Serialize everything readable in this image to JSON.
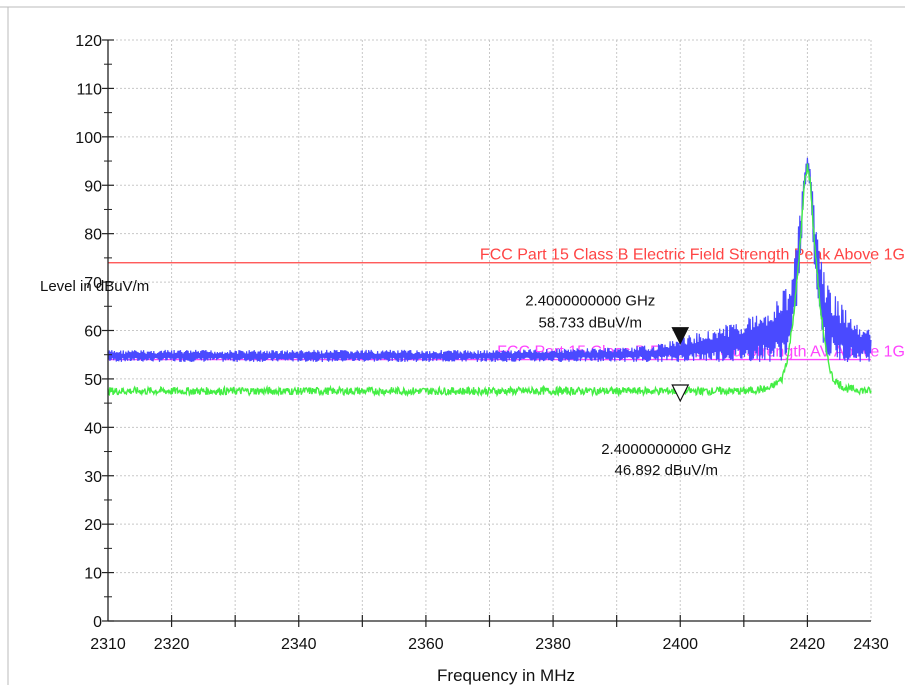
{
  "chart_data": {
    "type": "line",
    "xlabel": "Frequency in MHz",
    "ylabel": "Level in dBuV/m",
    "xlim": [
      2310,
      2430
    ],
    "ylim": [
      0,
      120
    ],
    "x_ticks": [
      2310,
      2320,
      2340,
      2360,
      2380,
      2400,
      2420,
      2430
    ],
    "y_ticks": [
      0,
      10,
      20,
      30,
      40,
      50,
      60,
      70,
      80,
      90,
      100,
      110,
      120
    ],
    "grid": true,
    "series": [
      {
        "color": "#4a4aff",
        "x": [
          2310,
          2330,
          2350,
          2370,
          2390,
          2396,
          2400,
          2404,
          2408,
          2412,
          2415,
          2417,
          2418,
          2419,
          2419.5,
          2420,
          2420.5,
          2421,
          2422,
          2423,
          2425,
          2428,
          2430
        ],
        "y": [
          56,
          56,
          56,
          56,
          56.5,
          57,
          58.5,
          60,
          61.5,
          63.5,
          66,
          70,
          76,
          86,
          93,
          96,
          93,
          86,
          76,
          70,
          66,
          61,
          60
        ],
        "y_low": [
          53.5,
          53.5,
          53.5,
          53.5,
          53.5,
          53.5,
          53.5,
          53.5,
          53.5,
          53.5,
          53.5,
          54,
          60,
          75,
          88,
          93,
          88,
          75,
          60,
          54,
          53.5,
          53.5,
          53.5
        ]
      },
      {
        "color": "#44ee44",
        "x": [
          2310,
          2330,
          2350,
          2370,
          2390,
          2400,
          2410,
          2414,
          2416,
          2417,
          2418,
          2419,
          2419.5,
          2420,
          2420.5,
          2421,
          2422,
          2423,
          2424,
          2426,
          2430
        ],
        "y": [
          47.5,
          47.5,
          47.5,
          47.5,
          47.5,
          47.5,
          47.5,
          48,
          50,
          55,
          65,
          80,
          90,
          94,
          90,
          80,
          65,
          55,
          50,
          48,
          47.5
        ]
      }
    ],
    "limit_lines": [
      {
        "name": "FCC Part 15 Class B Electric Field Strength Peak Above 1G",
        "value": 74,
        "color": "#ff4444"
      },
      {
        "name": "FCC Part 15 Class B Electric Field Strength AV Above 1G",
        "value": 54,
        "color": "#ff44ff"
      }
    ],
    "markers": [
      {
        "x": 2400,
        "y": 58.733,
        "style": "filled",
        "freq_label": "2.4000000000 GHz",
        "value_label": "58.733 dBuV/m"
      },
      {
        "x": 2400,
        "y": 46.892,
        "style": "hollow",
        "freq_label": "2.4000000000 GHz",
        "value_label": "46.892 dBuV/m"
      }
    ]
  }
}
